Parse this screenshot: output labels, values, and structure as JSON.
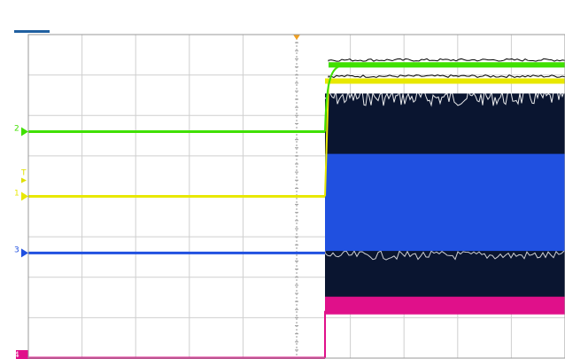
{
  "screen": {
    "background": "#ffffff",
    "grid_color": "#cfcfcf",
    "center_axis_color": "#9a9a9a",
    "divisions_x": 10,
    "divisions_y": 8
  },
  "trigger": {
    "time_marker_color": "#f0a020",
    "level_marker_color": "#e0e000",
    "position_fraction": 0.5,
    "glyph_text": "T"
  },
  "channels": [
    {
      "name": "1",
      "color": "#e8e800",
      "marker_label": "1",
      "before_level_div": 4.0,
      "after_level_div": 6.85
    },
    {
      "name": "2",
      "color": "#40e000",
      "marker_label": "2",
      "before_level_div": 5.6,
      "after_level_div": 7.25
    },
    {
      "name": "3",
      "color": "#2050e0",
      "marker_label": "3",
      "before_level_div": 2.6,
      "after_fill_top_div": 5.05,
      "after_fill_bottom_div": 2.65
    },
    {
      "name": "4",
      "color": "#e0108a",
      "marker_label": "4",
      "before_level_div": 0.0,
      "after_level_div": 1.3
    }
  ],
  "colors": {
    "noise_dark": "#0a1530",
    "status_bar": "#2060a0"
  }
}
